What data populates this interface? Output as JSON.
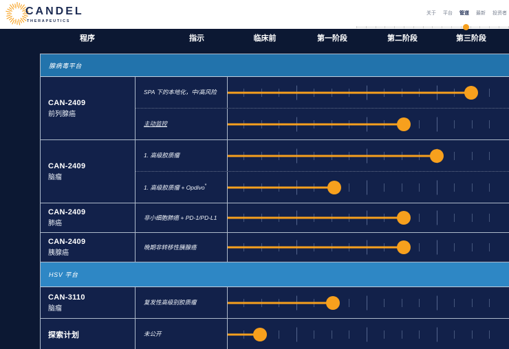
{
  "brand": {
    "name": "CANDEL",
    "sub": "THERAPEUTICS"
  },
  "nav": {
    "items": [
      {
        "label": "关于",
        "active": false
      },
      {
        "label": "平台",
        "active": false
      },
      {
        "label": "管道",
        "active": true
      },
      {
        "label": "最新",
        "active": false
      },
      {
        "label": "投资者",
        "active": false
      }
    ]
  },
  "columns": [
    "程序",
    "指示",
    "临床前",
    "第一阶段",
    "第二阶段",
    "第三阶段"
  ],
  "chart_data": {
    "type": "bar",
    "title": "管道 (Pipeline)",
    "x_axis_phases": [
      "临床前",
      "第一阶段",
      "第二阶段",
      "第三阶段"
    ],
    "sections": [
      {
        "title": "腺病毒平台",
        "style": "adeno",
        "rows": [
          {
            "program": "CAN-2409",
            "disease": "前列腺癌",
            "indications": [
              {
                "label": "SPA 下的本地化，中/高风险",
                "underline": false,
                "footnote": "",
                "phase_reached": "第三阶段",
                "progress_pct": 86.5
              },
              {
                "label": "主动监控",
                "underline": true,
                "footnote": "",
                "phase_reached": "第二阶段",
                "progress_pct": 62.7
              }
            ]
          },
          {
            "program": "CAN-2409",
            "disease": "脑瘤",
            "indications": [
              {
                "label": "1. 高级胶质瘤",
                "underline": false,
                "footnote": "",
                "phase_reached": "第二阶段",
                "progress_pct": 74.3
              },
              {
                "label": "1. 高级胶质瘤 + Opdivo",
                "underline": false,
                "footnote": "*",
                "phase_reached": "第一阶段",
                "progress_pct": 38.0
              }
            ]
          },
          {
            "program": "CAN-2409",
            "disease": "肺癌",
            "indications": [
              {
                "label": "非小细胞肺癌 + PD-1/PD-L1",
                "underline": false,
                "footnote": "",
                "phase_reached": "第二阶段",
                "progress_pct": 62.5
              }
            ]
          },
          {
            "program": "CAN-2409",
            "disease": "胰腺癌",
            "indications": [
              {
                "label": "晚期非转移性胰腺癌",
                "underline": false,
                "footnote": "",
                "phase_reached": "第二阶段",
                "progress_pct": 62.5
              }
            ]
          }
        ]
      },
      {
        "title": "HSV 平台",
        "style": "hsv",
        "rows": [
          {
            "program": "CAN-3110",
            "disease": "脑瘤",
            "indications": [
              {
                "label": "复发性高级别胶质瘤",
                "underline": false,
                "footnote": "",
                "phase_reached": "第一阶段",
                "progress_pct": 37.3
              }
            ]
          },
          {
            "program": "探索计划",
            "disease": "",
            "indications": [
              {
                "label": "未公开",
                "underline": false,
                "footnote": "",
                "phase_reached": "临床前",
                "progress_pct": 11.5
              }
            ]
          }
        ]
      }
    ]
  },
  "colors": {
    "accent_orange": "#f7a01d",
    "page_navy": "#0c1833",
    "cell_navy": "#12214a",
    "adeno_band_blue": "#2273ac",
    "hsv_band_blue": "#2e87c5",
    "brand_navy": "#1b2a52",
    "grid_tick": "#46577d",
    "border_gray": "#aebacb"
  }
}
